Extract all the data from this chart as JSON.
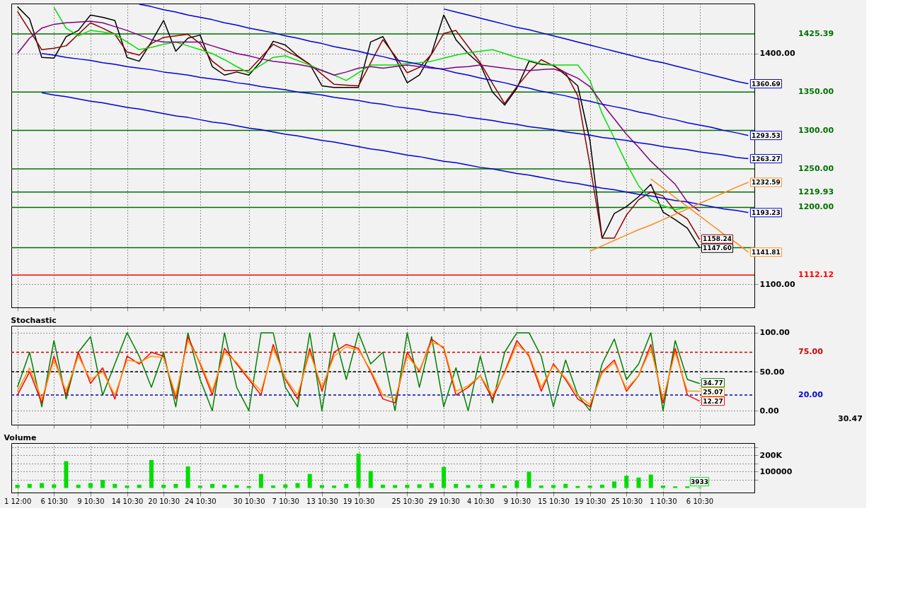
{
  "chart_data": [
    {
      "type": "line",
      "ylim": [
        1070,
        1465
      ],
      "tick_labels": "y",
      "grid": true,
      "categories": [
        null,
        null,
        null,
        null,
        null,
        null,
        null,
        null,
        null,
        null,
        null,
        null,
        null,
        null,
        null,
        null,
        null,
        null,
        null,
        null,
        null,
        null,
        null,
        null,
        null,
        null,
        null,
        null,
        null,
        null,
        null,
        null,
        null,
        null,
        null,
        null,
        null,
        null,
        null,
        null,
        null,
        null,
        null,
        null,
        null,
        null,
        null,
        null,
        null,
        null,
        null,
        null,
        null,
        null,
        null,
        null,
        null,
        null,
        null,
        null,
        null
      ],
      "yticks": [
        {
          "value": 1100,
          "label": "1100.00"
        },
        {
          "value": 1400,
          "label": "1400.00"
        }
      ],
      "series": [
        {
          "color": "#000000",
          "values": [
            1461,
            1445,
            1395,
            1394,
            1422,
            1430,
            1450,
            1447,
            1443,
            1395,
            1390,
            1415,
            1443,
            1403,
            1420,
            1424,
            1383,
            1372,
            1376,
            1372,
            1390,
            1416,
            1411,
            1397,
            1386,
            1358,
            1356,
            1356,
            1356,
            1415,
            1422,
            1395,
            1362,
            1372,
            1400,
            1450,
            1418,
            1400,
            1386,
            1350,
            1333,
            1355,
            1390,
            1386,
            1385,
            1372,
            1358,
            1287,
            1160,
            1192,
            1201,
            1214,
            1230,
            1194,
            1184,
            1173,
            1147.6,
            null,
            null,
            null,
            null
          ],
          "value_labels": [
            null,
            null,
            null,
            null,
            null,
            null,
            null,
            null,
            null,
            null,
            null,
            null,
            null,
            null,
            null,
            null,
            null,
            null,
            null,
            null,
            null,
            null,
            null,
            null,
            null,
            null,
            null,
            null,
            null,
            null,
            null,
            null,
            null,
            null,
            null,
            null,
            null,
            null,
            null,
            null,
            null,
            null,
            null,
            null,
            null,
            null,
            null,
            null,
            null,
            null,
            null,
            null,
            null,
            null,
            null,
            null,
            "1147.60",
            null,
            null,
            null,
            null
          ]
        },
        {
          "color": "#8b0000",
          "values": [
            1455,
            1430,
            1405,
            1407,
            1410,
            1425,
            1440,
            1433,
            1425,
            1402,
            1398,
            1413,
            1421,
            1423,
            1425,
            1413,
            1390,
            1378,
            1378,
            1378,
            1395,
            1412,
            1404,
            1396,
            1386,
            1373,
            1360,
            1359,
            1358,
            1388,
            1418,
            1397,
            1375,
            1382,
            1399,
            1426,
            1430,
            1409,
            1388,
            1361,
            1335,
            1357,
            1376,
            1392,
            1384,
            1375,
            1345,
            1255,
            1160,
            1160,
            1190,
            1210,
            1220,
            1215,
            1195,
            1185,
            1158.24,
            null,
            null,
            null,
            null
          ],
          "value_labels": [
            null,
            null,
            null,
            null,
            null,
            null,
            null,
            null,
            null,
            null,
            null,
            null,
            null,
            null,
            null,
            null,
            null,
            null,
            null,
            null,
            null,
            null,
            null,
            null,
            null,
            null,
            null,
            null,
            null,
            null,
            null,
            null,
            null,
            null,
            null,
            null,
            null,
            null,
            null,
            null,
            null,
            null,
            null,
            null,
            null,
            null,
            null,
            null,
            null,
            null,
            null,
            null,
            null,
            null,
            null,
            null,
            "1158.24",
            null,
            null,
            null,
            null
          ]
        },
        {
          "color": "#00e000",
          "values": [
            null,
            null,
            null,
            1460,
            1433,
            1423,
            1430,
            1428,
            1425,
            1415,
            1405,
            1408,
            1412,
            1415,
            1410,
            1405,
            1400,
            1392,
            1383,
            1375,
            1385,
            1395,
            1397,
            1391,
            1385,
            1378,
            1372,
            1365,
            1375,
            1385,
            1385,
            1385,
            1387,
            1388,
            1390,
            1394,
            1398,
            1401,
            1403,
            1405,
            1400,
            1395,
            1391,
            1387,
            1385,
            1385,
            1385,
            1365,
            1322,
            1290,
            1257,
            1228,
            1210,
            1202,
            1197,
            1200,
            null,
            null,
            null,
            null,
            null
          ]
        },
        {
          "color": "#800080",
          "values": [
            1400,
            1420,
            1433,
            1438,
            1440,
            1441,
            1442,
            1440,
            1435,
            1430,
            1424,
            1418,
            1415,
            1415,
            1415,
            1415,
            1410,
            1405,
            1400,
            1397,
            1393,
            1390,
            1388,
            1386,
            1383,
            1378,
            1372,
            1376,
            1381,
            1383,
            1381,
            1383,
            1385,
            1383,
            1381,
            1380,
            1382,
            1383,
            1385,
            1383,
            1381,
            1379,
            1378,
            1379,
            1380,
            1375,
            1368,
            1357,
            1335,
            1315,
            1295,
            1278,
            1260,
            1245,
            1230,
            1207,
            1195,
            null,
            null,
            null,
            null
          ]
        },
        {
          "color": "#0000dd",
          "values": [
            null,
            null,
            null,
            null,
            null,
            null,
            null,
            null,
            null,
            null,
            null,
            null,
            null,
            null,
            null,
            null,
            null,
            null,
            null,
            null,
            null,
            null,
            null,
            null,
            null,
            null,
            null,
            null,
            null,
            null,
            null,
            null,
            null,
            null,
            null,
            1458,
            1454,
            1450,
            1446,
            1442,
            1438,
            1434,
            1431,
            1427,
            1423,
            1419,
            1415,
            1411,
            1407,
            1403,
            1399,
            1395,
            1391,
            1388,
            1384,
            1380,
            1376,
            1372,
            1368,
            1364,
            1360.69
          ],
          "value_labels": [
            null,
            null,
            null,
            null,
            null,
            null,
            null,
            null,
            null,
            null,
            null,
            null,
            null,
            null,
            null,
            null,
            null,
            null,
            null,
            null,
            null,
            null,
            null,
            null,
            null,
            null,
            null,
            null,
            null,
            null,
            null,
            null,
            null,
            null,
            null,
            null,
            null,
            null,
            null,
            null,
            null,
            null,
            null,
            null,
            null,
            null,
            null,
            null,
            null,
            null,
            null,
            null,
            null,
            null,
            null,
            null,
            null,
            null,
            null,
            null,
            "1360.69"
          ]
        },
        {
          "color": "#0000dd",
          "values": [
            null,
            null,
            null,
            null,
            null,
            null,
            null,
            null,
            null,
            null,
            1464,
            1461,
            1457,
            1454,
            1450,
            1447,
            1444,
            1440,
            1437,
            1433,
            1430,
            1427,
            1423,
            1420,
            1416,
            1413,
            1409,
            1406,
            1403,
            1399,
            1396,
            1392,
            1389,
            1386,
            1382,
            1379,
            1375,
            1372,
            1368,
            1365,
            1362,
            1358,
            1355,
            1351,
            1348,
            1345,
            1341,
            1338,
            1334,
            1331,
            1328,
            1324,
            1321,
            1317,
            1314,
            1310,
            1307,
            1304,
            1300,
            1297,
            1293.53
          ],
          "value_labels": [
            null,
            null,
            null,
            null,
            null,
            null,
            null,
            null,
            null,
            null,
            null,
            null,
            null,
            null,
            null,
            null,
            null,
            null,
            null,
            null,
            null,
            null,
            null,
            null,
            null,
            null,
            null,
            null,
            null,
            null,
            null,
            null,
            null,
            null,
            null,
            null,
            null,
            null,
            null,
            null,
            null,
            null,
            null,
            null,
            null,
            null,
            null,
            null,
            null,
            null,
            null,
            null,
            null,
            null,
            null,
            null,
            null,
            null,
            null,
            null,
            "1293.53"
          ]
        },
        {
          "color": "#0000dd",
          "values": [
            null,
            null,
            1400,
            1398,
            1395,
            1393,
            1391,
            1388,
            1386,
            1383,
            1381,
            1379,
            1376,
            1374,
            1372,
            1369,
            1367,
            1365,
            1362,
            1360,
            1357,
            1355,
            1353,
            1350,
            1348,
            1346,
            1343,
            1341,
            1339,
            1336,
            1334,
            1331,
            1329,
            1327,
            1324,
            1322,
            1320,
            1317,
            1315,
            1313,
            1310,
            1308,
            1305,
            1303,
            1301,
            1298,
            1296,
            1294,
            1291,
            1289,
            1287,
            1284,
            1282,
            1279,
            1277,
            1275,
            1272,
            1270,
            1268,
            1265,
            1263.27
          ],
          "value_labels": [
            null,
            null,
            null,
            null,
            null,
            null,
            null,
            null,
            null,
            null,
            null,
            null,
            null,
            null,
            null,
            null,
            null,
            null,
            null,
            null,
            null,
            null,
            null,
            null,
            null,
            null,
            null,
            null,
            null,
            null,
            null,
            null,
            null,
            null,
            null,
            null,
            null,
            null,
            null,
            null,
            null,
            null,
            null,
            null,
            null,
            null,
            null,
            null,
            null,
            null,
            null,
            null,
            null,
            null,
            null,
            null,
            null,
            null,
            null,
            null,
            "1263.27"
          ]
        },
        {
          "color": "#0000dd",
          "values": [
            null,
            null,
            1349,
            1346,
            1344,
            1341,
            1338,
            1336,
            1333,
            1330,
            1328,
            1325,
            1322,
            1319,
            1317,
            1314,
            1311,
            1309,
            1306,
            1303,
            1301,
            1298,
            1295,
            1293,
            1290,
            1287,
            1285,
            1282,
            1279,
            1276,
            1274,
            1271,
            1268,
            1266,
            1263,
            1260,
            1258,
            1255,
            1252,
            1250,
            1247,
            1244,
            1242,
            1239,
            1236,
            1233,
            1231,
            1228,
            1225,
            1223,
            1220,
            1217,
            1215,
            1212,
            1209,
            1207,
            1204,
            1201,
            1198,
            1196,
            1193.23
          ],
          "value_labels": [
            null,
            null,
            null,
            null,
            null,
            null,
            null,
            null,
            null,
            null,
            null,
            null,
            null,
            null,
            null,
            null,
            null,
            null,
            null,
            null,
            null,
            null,
            null,
            null,
            null,
            null,
            null,
            null,
            null,
            null,
            null,
            null,
            null,
            null,
            null,
            null,
            null,
            null,
            null,
            null,
            null,
            null,
            null,
            null,
            null,
            null,
            null,
            null,
            null,
            null,
            null,
            null,
            null,
            null,
            null,
            null,
            null,
            null,
            null,
            null,
            "1193.23"
          ]
        },
        {
          "color": "#ff8c1a",
          "values": [
            null,
            null,
            null,
            null,
            null,
            null,
            null,
            null,
            null,
            null,
            null,
            null,
            null,
            null,
            null,
            null,
            null,
            null,
            null,
            null,
            null,
            null,
            null,
            null,
            null,
            null,
            null,
            null,
            null,
            null,
            null,
            null,
            null,
            null,
            null,
            null,
            null,
            null,
            null,
            null,
            null,
            null,
            null,
            null,
            null,
            null,
            null,
            1143,
            1150,
            1157,
            1164,
            1171,
            1177,
            1184,
            1191,
            1198,
            1205,
            1212,
            1219,
            1226,
            1232.59
          ],
          "value_labels": [
            null,
            null,
            null,
            null,
            null,
            null,
            null,
            null,
            null,
            null,
            null,
            null,
            null,
            null,
            null,
            null,
            null,
            null,
            null,
            null,
            null,
            null,
            null,
            null,
            null,
            null,
            null,
            null,
            null,
            null,
            null,
            null,
            null,
            null,
            null,
            null,
            null,
            null,
            null,
            null,
            null,
            null,
            null,
            null,
            null,
            null,
            null,
            null,
            null,
            null,
            null,
            null,
            null,
            null,
            null,
            null,
            null,
            null,
            null,
            null,
            "1232.59"
          ]
        },
        {
          "color": "#ff8c1a",
          "values": [
            null,
            null,
            null,
            null,
            null,
            null,
            null,
            null,
            null,
            null,
            null,
            null,
            null,
            null,
            null,
            null,
            null,
            null,
            null,
            null,
            null,
            null,
            null,
            null,
            null,
            null,
            null,
            null,
            null,
            null,
            null,
            null,
            null,
            null,
            null,
            null,
            null,
            null,
            null,
            null,
            null,
            null,
            null,
            null,
            null,
            null,
            null,
            null,
            null,
            null,
            null,
            null,
            1237,
            1225,
            1213,
            1201,
            1189,
            1177,
            1165,
            1154,
            1141.81
          ],
          "value_labels": [
            null,
            null,
            null,
            null,
            null,
            null,
            null,
            null,
            null,
            null,
            null,
            null,
            null,
            null,
            null,
            null,
            null,
            null,
            null,
            null,
            null,
            null,
            null,
            null,
            null,
            null,
            null,
            null,
            null,
            null,
            null,
            null,
            null,
            null,
            null,
            null,
            null,
            null,
            null,
            null,
            null,
            null,
            null,
            null,
            null,
            null,
            null,
            null,
            null,
            null,
            null,
            null,
            null,
            null,
            null,
            null,
            null,
            null,
            null,
            null,
            "1141.81"
          ]
        }
      ],
      "ref_lines": [
        {
          "axis": "y",
          "value": 1425.39,
          "label": "1425.39",
          "color": "#007000"
        },
        {
          "axis": "y",
          "value": 1350,
          "label": "1350.00",
          "color": "#007000"
        },
        {
          "axis": "y",
          "value": 1300,
          "label": "1300.00",
          "color": "#007000"
        },
        {
          "axis": "y",
          "value": 1250,
          "label": "1250.00",
          "color": "#007000"
        },
        {
          "axis": "y",
          "value": 1219.93,
          "label": "1219.93",
          "color": "#007000"
        },
        {
          "axis": "y",
          "value": 1200,
          "label": "1200.00",
          "color": "#007000"
        },
        {
          "axis": "y",
          "value": 1147.6,
          "color": "#007000"
        },
        {
          "axis": "y",
          "value": 1112.12,
          "label": "1112.12",
          "color": "#ff0000"
        }
      ]
    },
    {
      "type": "line",
      "title": "Stochastic",
      "ylim": [
        -18,
        109
      ],
      "tick_labels": "y",
      "grid": true,
      "categories": [
        null,
        null,
        null,
        null,
        null,
        null,
        null,
        null,
        null,
        null,
        null,
        null,
        null,
        null,
        null,
        null,
        null,
        null,
        null,
        null,
        null,
        null,
        null,
        null,
        null,
        null,
        null,
        null,
        null,
        null,
        null,
        null,
        null,
        null,
        null,
        null,
        null,
        null,
        null,
        null,
        null,
        null,
        null,
        null,
        null,
        null,
        null,
        null,
        null,
        null,
        null,
        null,
        null,
        null,
        null,
        null,
        null,
        null,
        null,
        null,
        null
      ],
      "yticks": [
        {
          "value": 0,
          "label": "0.00"
        },
        {
          "value": 50,
          "label": "50.00"
        },
        {
          "value": 100,
          "label": "100.00"
        }
      ],
      "series": [
        {
          "color": "#008000",
          "values": [
            30,
            75,
            5,
            90,
            15,
            75,
            95,
            20,
            60,
            100,
            70,
            30,
            75,
            5,
            100,
            40,
            0,
            100,
            30,
            0,
            100,
            100,
            30,
            5,
            100,
            0,
            100,
            40,
            100,
            60,
            75,
            0,
            100,
            30,
            95,
            5,
            55,
            0,
            70,
            10,
            75,
            100,
            100,
            70,
            5,
            65,
            20,
            0,
            60,
            92,
            40,
            60,
            100,
            0,
            90,
            40,
            34.77,
            null,
            null,
            null,
            null
          ],
          "value_labels": [
            null,
            null,
            null,
            null,
            null,
            null,
            null,
            null,
            null,
            null,
            null,
            null,
            null,
            null,
            null,
            null,
            null,
            null,
            null,
            null,
            null,
            null,
            null,
            null,
            null,
            null,
            null,
            null,
            null,
            null,
            null,
            null,
            null,
            null,
            null,
            null,
            null,
            null,
            null,
            null,
            null,
            null,
            null,
            null,
            null,
            null,
            null,
            null,
            null,
            null,
            null,
            null,
            null,
            null,
            null,
            null,
            "34.77",
            null,
            null,
            null,
            null
          ]
        },
        {
          "color": "#ff0000",
          "values": [
            20,
            50,
            10,
            70,
            20,
            75,
            35,
            55,
            15,
            70,
            60,
            75,
            70,
            15,
            95,
            60,
            20,
            80,
            60,
            40,
            20,
            85,
            40,
            15,
            80,
            25,
            75,
            85,
            80,
            50,
            15,
            10,
            75,
            50,
            92,
            80,
            20,
            30,
            45,
            15,
            50,
            90,
            70,
            25,
            60,
            40,
            15,
            5,
            50,
            65,
            25,
            45,
            85,
            10,
            80,
            20,
            12.27,
            null,
            null,
            null,
            null
          ],
          "value_labels": [
            null,
            null,
            null,
            null,
            null,
            null,
            null,
            null,
            null,
            null,
            null,
            null,
            null,
            null,
            null,
            null,
            null,
            null,
            null,
            null,
            null,
            null,
            null,
            null,
            null,
            null,
            null,
            null,
            null,
            null,
            null,
            null,
            null,
            null,
            null,
            null,
            null,
            null,
            null,
            null,
            null,
            null,
            null,
            null,
            null,
            null,
            null,
            null,
            null,
            null,
            null,
            null,
            null,
            null,
            null,
            null,
            "12.27",
            null,
            null,
            null,
            null
          ]
        },
        {
          "color": "#ff9900",
          "values": [
            25,
            55,
            15,
            65,
            25,
            70,
            40,
            50,
            20,
            65,
            62,
            70,
            68,
            20,
            90,
            62,
            25,
            75,
            62,
            42,
            25,
            80,
            42,
            20,
            75,
            30,
            70,
            82,
            78,
            52,
            20,
            15,
            70,
            52,
            88,
            82,
            25,
            32,
            45,
            20,
            48,
            85,
            72,
            30,
            58,
            42,
            20,
            8,
            48,
            62,
            28,
            45,
            80,
            15,
            75,
            25,
            25.07,
            null,
            null,
            null,
            null
          ],
          "value_labels": [
            null,
            null,
            null,
            null,
            null,
            null,
            null,
            null,
            null,
            null,
            null,
            null,
            null,
            null,
            null,
            null,
            null,
            null,
            null,
            null,
            null,
            null,
            null,
            null,
            null,
            null,
            null,
            null,
            null,
            null,
            null,
            null,
            null,
            null,
            null,
            null,
            null,
            null,
            null,
            null,
            null,
            null,
            null,
            null,
            null,
            null,
            null,
            null,
            null,
            null,
            null,
            null,
            null,
            null,
            null,
            null,
            "25.07",
            null,
            null,
            null,
            null
          ]
        }
      ],
      "ref_lines": [
        {
          "axis": "y",
          "value": 75,
          "label": "75.00",
          "color": "#cc0000",
          "line_style": "dashed"
        },
        {
          "axis": "y",
          "value": 50,
          "color": "#000000",
          "line_style": "dashed"
        },
        {
          "axis": "y",
          "value": 20,
          "label": "20.00",
          "color": "#0000cc",
          "line_style": "dashed"
        }
      ],
      "annotations": [
        "30.47"
      ]
    },
    {
      "type": "bar",
      "title": "Volume",
      "ylim": [
        -28000,
        275000
      ],
      "grid": true,
      "color": "#00dd00",
      "categories": [
        "1 12:00",
        null,
        null,
        "6 10:30",
        null,
        null,
        "9 10:30",
        null,
        null,
        "14 10:30",
        null,
        null,
        "20 10:30",
        null,
        null,
        "24 10:30",
        null,
        null,
        null,
        "30 10:30",
        null,
        null,
        "7 10:30",
        null,
        null,
        "13 10:30",
        null,
        null,
        "19 10:30",
        null,
        null,
        null,
        "25 10:30",
        null,
        null,
        "29 10:30",
        null,
        null,
        "4 10:30",
        null,
        null,
        "9 10:30",
        null,
        null,
        "15 10:30",
        null,
        null,
        "19 10:30",
        null,
        null,
        "25 10:30",
        null,
        null,
        "1 10:30",
        null,
        null,
        "6 10:30",
        null,
        null,
        null,
        null
      ],
      "yticks": [
        {
          "value": 50000,
          "label": null
        },
        {
          "value": 100000,
          "label": "100000"
        },
        {
          "value": 150000,
          "label": null
        },
        {
          "value": 200000,
          "label": "200K"
        },
        {
          "value": 250000,
          "label": null
        }
      ],
      "values": [
        20000,
        25000,
        30000,
        22000,
        164000,
        20000,
        30000,
        50000,
        25000,
        15000,
        20000,
        171000,
        20000,
        25000,
        132000,
        15000,
        25000,
        20000,
        18000,
        12000,
        86000,
        15000,
        22000,
        30000,
        86000,
        18000,
        15000,
        25000,
        211000,
        104000,
        20000,
        18000,
        20000,
        22000,
        30000,
        129000,
        25000,
        18000,
        20000,
        25000,
        15000,
        45000,
        100000,
        15000,
        18000,
        25000,
        12000,
        15000,
        20000,
        40000,
        75000,
        64000,
        82000,
        15000,
        10000,
        10000,
        3933,
        null,
        null,
        null,
        null
      ],
      "value_labels": [
        null,
        null,
        null,
        null,
        null,
        null,
        null,
        null,
        null,
        null,
        null,
        null,
        null,
        null,
        null,
        null,
        null,
        null,
        null,
        null,
        null,
        null,
        null,
        null,
        null,
        null,
        null,
        null,
        null,
        null,
        null,
        null,
        null,
        null,
        null,
        null,
        null,
        null,
        null,
        null,
        null,
        null,
        null,
        null,
        null,
        null,
        null,
        null,
        null,
        null,
        null,
        null,
        null,
        null,
        null,
        null,
        "3933",
        null,
        null,
        null,
        null
      ]
    }
  ]
}
